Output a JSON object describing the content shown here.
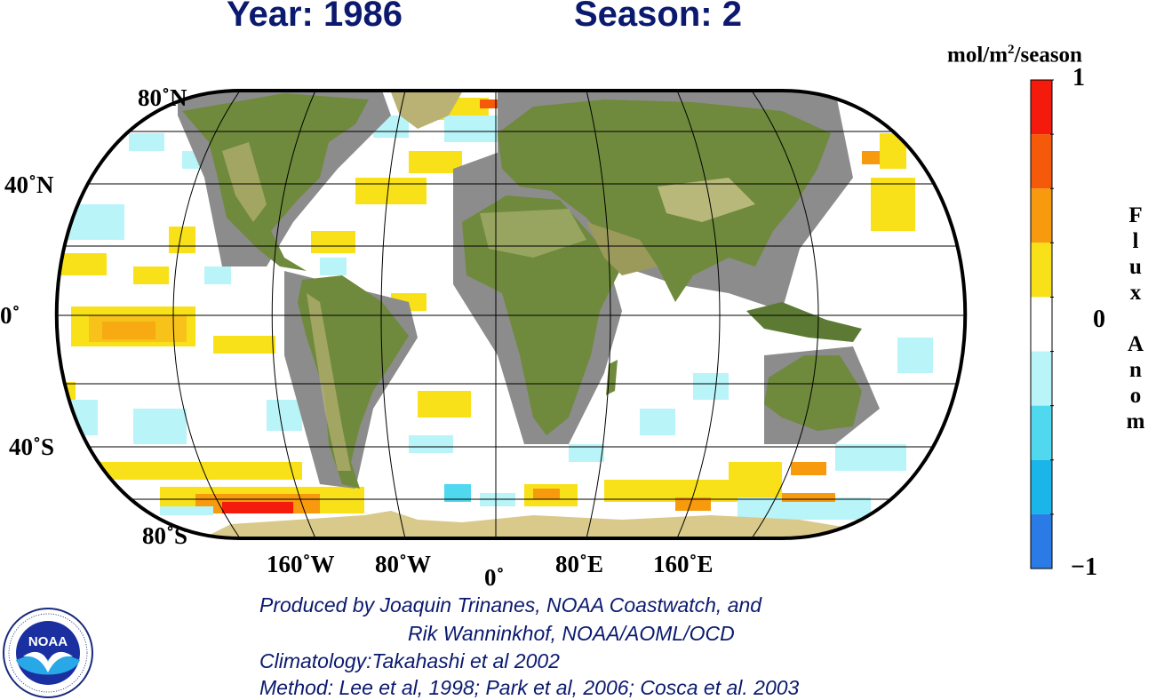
{
  "header": {
    "year": "Year: 1986",
    "season": "Season: 2"
  },
  "map": {
    "lat_labels": [
      "80˚N",
      "40˚N",
      "0˚",
      "40˚S",
      "80˚S"
    ],
    "lon_labels": [
      "160˚W",
      "80˚W",
      "0˚",
      "80˚E",
      "160˚E"
    ],
    "colors": {
      "ocean": "#ffffff",
      "land": "#6f8a3c",
      "land_dark": "#4d6a2b",
      "land_light": "#a9b070",
      "ice": "#d9c98a",
      "mask": "#8c8c8c",
      "grid": "#000000"
    }
  },
  "colorbar": {
    "unit_prefix": "mol/m",
    "unit_sup": "2",
    "unit_suffix": "/season",
    "max_label": "1",
    "mid_label": "0",
    "min_label": "−1",
    "title_letters": [
      "F",
      "l",
      "u",
      "x",
      "",
      "A",
      "n",
      "o",
      "m"
    ],
    "colors_top_to_bottom": [
      "#f41a0c",
      "#f45a0a",
      "#f79a0e",
      "#f9e11a",
      "#ffffff",
      "#b8f4f8",
      "#4fd8ee",
      "#1ab6ea",
      "#2a7be6"
    ]
  },
  "credits": {
    "line1": "Produced by Joaquin Trinanes, NOAA Coastwatch, and",
    "line2": "Rik Wanninkhof, NOAA/AOML/OCD",
    "line3": "Climatology:Takahashi et al 2002",
    "line4": "Method: Lee et al, 1998; Park et al, 2006; Cosca et al. 2003"
  },
  "logo": {
    "text": "NOAA",
    "ring_text_top": "NATIONAL OCEANIC AND ATMOSPHERIC ADMINISTRATION",
    "ring_text_bottom": "U.S. DEPARTMENT OF COMMERCE"
  }
}
